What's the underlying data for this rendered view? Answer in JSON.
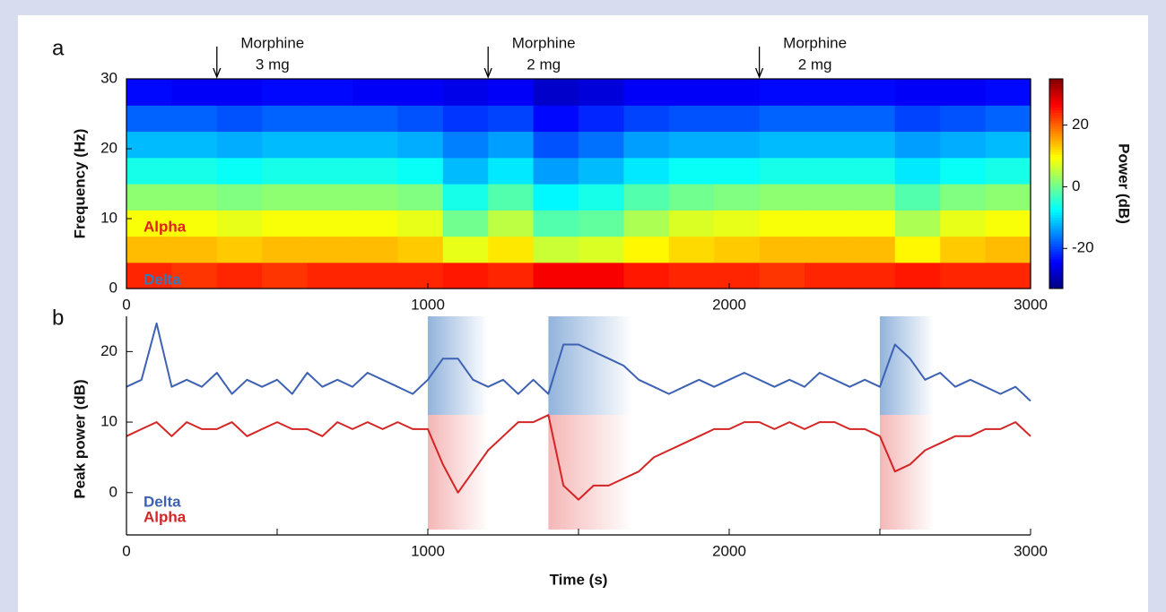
{
  "chart_data": [
    {
      "type": "heatmap",
      "panel_label": "a",
      "ylabel": "Frequency (Hz)",
      "x_edges": [
        0,
        150,
        300,
        450,
        600,
        750,
        900,
        1050,
        1200,
        1350,
        1500,
        1650,
        1800,
        1950,
        2100,
        2250,
        2400,
        2550,
        2700,
        2850,
        3000
      ],
      "y_edges": [
        0,
        3.75,
        7.5,
        11.25,
        15,
        18.75,
        22.5,
        26.25,
        30
      ],
      "z": [
        [
          24,
          23,
          24,
          23,
          24,
          24,
          24,
          25,
          24,
          27,
          27,
          25,
          24,
          24,
          23,
          24,
          24,
          25,
          24,
          24
        ],
        [
          14,
          14,
          13,
          14,
          14,
          14,
          13,
          8,
          11,
          6,
          7,
          10,
          12,
          13,
          14,
          14,
          14,
          10,
          13,
          14
        ],
        [
          9,
          9,
          8,
          9,
          9,
          9,
          8,
          0,
          5,
          -2,
          -1,
          4,
          7,
          8,
          9,
          9,
          9,
          4,
          8,
          9
        ],
        [
          2,
          2,
          1,
          2,
          2,
          2,
          1,
          -6,
          -2,
          -8,
          -6,
          -2,
          0,
          1,
          2,
          2,
          2,
          -2,
          1,
          2
        ],
        [
          -6,
          -6,
          -7,
          -6,
          -6,
          -6,
          -7,
          -12,
          -9,
          -14,
          -12,
          -9,
          -7,
          -7,
          -6,
          -6,
          -6,
          -9,
          -7,
          -6
        ],
        [
          -12,
          -12,
          -13,
          -12,
          -12,
          -12,
          -13,
          -16,
          -14,
          -19,
          -17,
          -14,
          -13,
          -13,
          -12,
          -12,
          -12,
          -14,
          -13,
          -12
        ],
        [
          -18,
          -18,
          -19,
          -18,
          -18,
          -18,
          -19,
          -21,
          -20,
          -24,
          -22,
          -20,
          -19,
          -19,
          -18,
          -18,
          -18,
          -20,
          -19,
          -18
        ],
        [
          -24,
          -25,
          -25,
          -24,
          -24,
          -25,
          -25,
          -26,
          -25,
          -28,
          -27,
          -25,
          -25,
          -25,
          -24,
          -24,
          -24,
          -25,
          -25,
          -24
        ]
      ],
      "colormap": "jet",
      "xlim": [
        0,
        3000
      ],
      "xticks": [
        0,
        1000,
        2000,
        3000
      ],
      "ylim": [
        0,
        30
      ],
      "yticks": [
        0,
        10,
        20,
        30
      ],
      "colorbar": {
        "label": "Power (dB)",
        "lim": [
          -33,
          35
        ],
        "ticks": [
          -20,
          0,
          20
        ]
      },
      "annotations": [
        {
          "x": 300,
          "lines": [
            "Morphine",
            "3 mg"
          ]
        },
        {
          "x": 1200,
          "lines": [
            "Morphine",
            "2 mg"
          ]
        },
        {
          "x": 2100,
          "lines": [
            "Morphine",
            "2 mg"
          ]
        }
      ],
      "band_labels": [
        {
          "text": "Alpha",
          "color": "#e0201b"
        },
        {
          "text": "Delta",
          "color": "#2f7bbf"
        }
      ]
    },
    {
      "type": "line",
      "panel_label": "b",
      "xlabel": "Time (s)",
      "ylabel": "Peak power (dB)",
      "x": [
        0,
        50,
        100,
        150,
        200,
        250,
        300,
        350,
        400,
        450,
        500,
        550,
        600,
        650,
        700,
        750,
        800,
        850,
        900,
        950,
        1000,
        1050,
        1100,
        1150,
        1200,
        1250,
        1300,
        1350,
        1400,
        1450,
        1500,
        1550,
        1600,
        1650,
        1700,
        1750,
        1800,
        1850,
        1900,
        1950,
        2000,
        2050,
        2100,
        2150,
        2200,
        2250,
        2300,
        2350,
        2400,
        2450,
        2500,
        2550,
        2600,
        2650,
        2700,
        2750,
        2800,
        2850,
        2900,
        2950,
        3000
      ],
      "series": [
        {
          "name": "Delta",
          "color": "#3d62b3",
          "values": [
            15,
            16,
            24,
            15,
            16,
            15,
            17,
            14,
            16,
            15,
            16,
            14,
            17,
            15,
            16,
            15,
            17,
            16,
            15,
            14,
            16,
            19,
            19,
            16,
            15,
            16,
            14,
            16,
            14,
            21,
            21,
            20,
            19,
            18,
            16,
            15,
            14,
            15,
            16,
            15,
            16,
            17,
            16,
            15,
            16,
            15,
            17,
            16,
            15,
            16,
            15,
            21,
            19,
            16,
            17,
            15,
            16,
            15,
            14,
            15,
            13
          ]
        },
        {
          "name": "Alpha",
          "color": "#d42424",
          "values": [
            8,
            9,
            10,
            8,
            10,
            9,
            9,
            10,
            8,
            9,
            10,
            9,
            9,
            8,
            10,
            9,
            10,
            9,
            10,
            9,
            9,
            4,
            0,
            3,
            6,
            8,
            10,
            10,
            11,
            1,
            -1,
            1,
            1,
            2,
            3,
            5,
            6,
            7,
            8,
            9,
            9,
            10,
            10,
            9,
            10,
            9,
            10,
            10,
            9,
            9,
            8,
            3,
            4,
            6,
            7,
            8,
            8,
            9,
            9,
            10,
            8
          ]
        }
      ],
      "xlim": [
        0,
        3000
      ],
      "xticks": [
        0,
        1000,
        2000,
        3000
      ],
      "xminor_ticks": [
        500,
        1500,
        2500
      ],
      "ylim": [
        -6,
        25
      ],
      "yticks": [
        0,
        10,
        20
      ],
      "shaded_intervals": [
        [
          1000,
          1200
        ],
        [
          1400,
          1680
        ],
        [
          2500,
          2680
        ]
      ]
    }
  ]
}
